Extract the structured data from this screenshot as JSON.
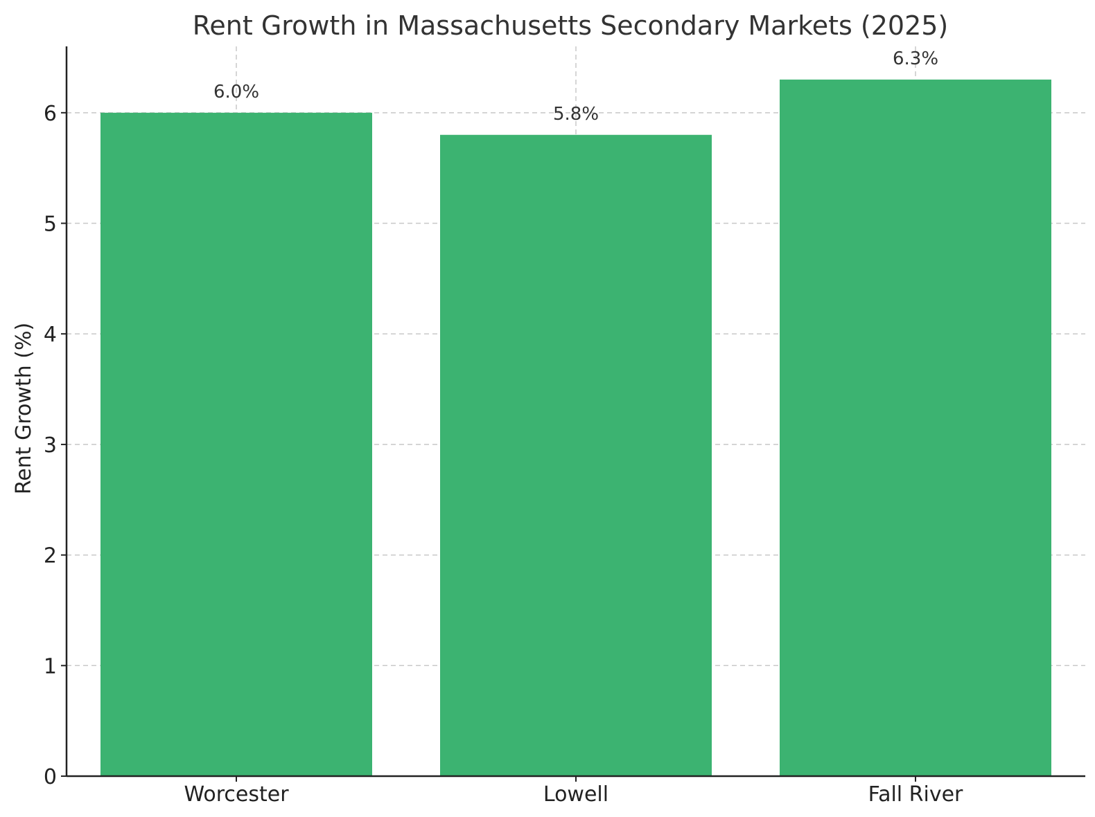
{
  "chart_data": {
    "type": "bar",
    "title": "Rent Growth in Massachusetts Secondary Markets (2025)",
    "xlabel": "",
    "ylabel": "Rent Growth (%)",
    "categories": [
      "Worcester",
      "Lowell",
      "Fall River"
    ],
    "values": [
      6.0,
      5.8,
      6.3
    ],
    "data_labels": [
      "6.0%",
      "5.8%",
      "6.3%"
    ],
    "y_ticks": [
      0,
      1,
      2,
      3,
      4,
      5,
      6
    ],
    "ylim": [
      0,
      6.6
    ],
    "grid": true,
    "bar_color": "#3cb371"
  }
}
